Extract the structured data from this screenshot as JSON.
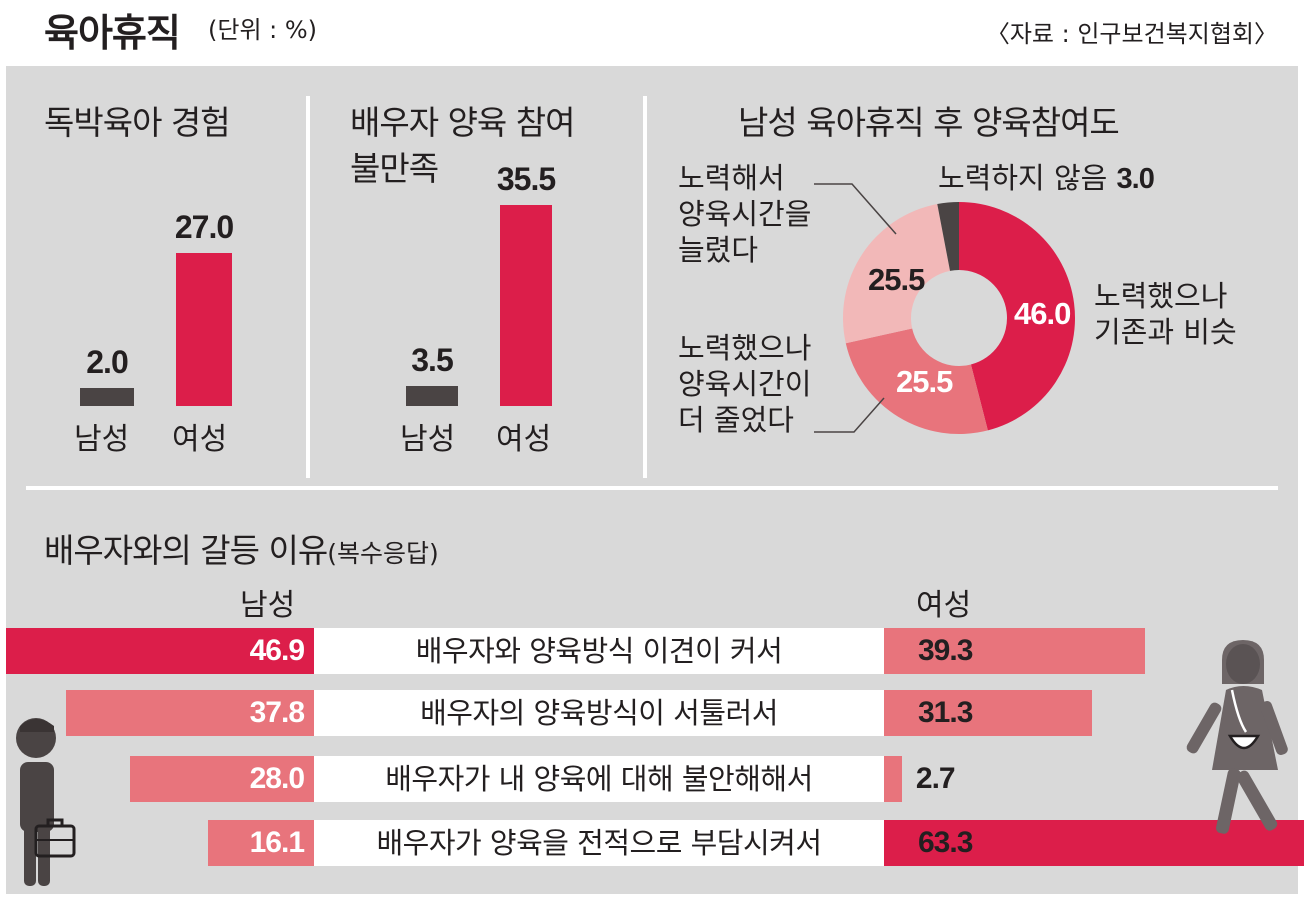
{
  "header": {
    "title": "육아휴직",
    "unit": "(단위 : %)",
    "source": "〈자료 : 인구보건복지협회〉"
  },
  "colors": {
    "accent": "#dc1e4a",
    "men": "#4a4444",
    "light": "#e8747c",
    "pale": "#f2b8b8",
    "panel": "#d9d9d9"
  },
  "chart_data": [
    {
      "type": "bar",
      "title": "독박육아 경험",
      "categories": [
        "남성",
        "여성"
      ],
      "values": [
        2.0,
        27.0
      ],
      "value_labels": [
        "2.0",
        "27.0"
      ]
    },
    {
      "type": "bar",
      "title_lines": [
        "배우자 양육 참여",
        "불만족"
      ],
      "categories": [
        "남성",
        "여성"
      ],
      "values": [
        3.5,
        35.5
      ],
      "value_labels": [
        "3.5",
        "35.5"
      ]
    },
    {
      "type": "pie",
      "title": "남성 육아휴직 후 양육참여도",
      "slices": [
        {
          "label": "노력했으나 기존과 비슷",
          "value": 46.0,
          "value_label": "46.0",
          "legend_lines": [
            "노력했으나",
            "기존과 비슷"
          ]
        },
        {
          "label": "노력했으나 양육시간이 더 줄었다",
          "value": 25.5,
          "value_label": "25.5",
          "legend_lines": [
            "노력했으나",
            "양육시간이",
            "더 줄었다"
          ]
        },
        {
          "label": "노력해서 양육시간을 늘렸다",
          "value": 25.5,
          "value_label": "25.5",
          "legend_lines": [
            "노력해서",
            "양육시간을",
            "늘렸다"
          ]
        },
        {
          "label": "노력하지 않음",
          "value": 3.0,
          "value_label": "3.0"
        }
      ]
    },
    {
      "type": "bar",
      "title": "배우자와의 갈등 이유",
      "title_note": "(복수응답)",
      "series_labels": [
        "남성",
        "여성"
      ],
      "categories": [
        "배우자와 양육방식 이견이 커서",
        "배우자의 양육방식이 서툴러서",
        "배우자가 내 양육에 대해 불안해해서",
        "배우자가 양육을 전적으로 부담시켜서"
      ],
      "series": [
        {
          "name": "남성",
          "values": [
            46.9,
            37.8,
            28.0,
            16.1
          ],
          "value_labels": [
            "46.9",
            "37.8",
            "28.0",
            "16.1"
          ]
        },
        {
          "name": "여성",
          "values": [
            39.3,
            31.3,
            2.7,
            63.3
          ],
          "value_labels": [
            "39.3",
            "31.3",
            "2.7",
            "63.3"
          ]
        }
      ]
    }
  ]
}
